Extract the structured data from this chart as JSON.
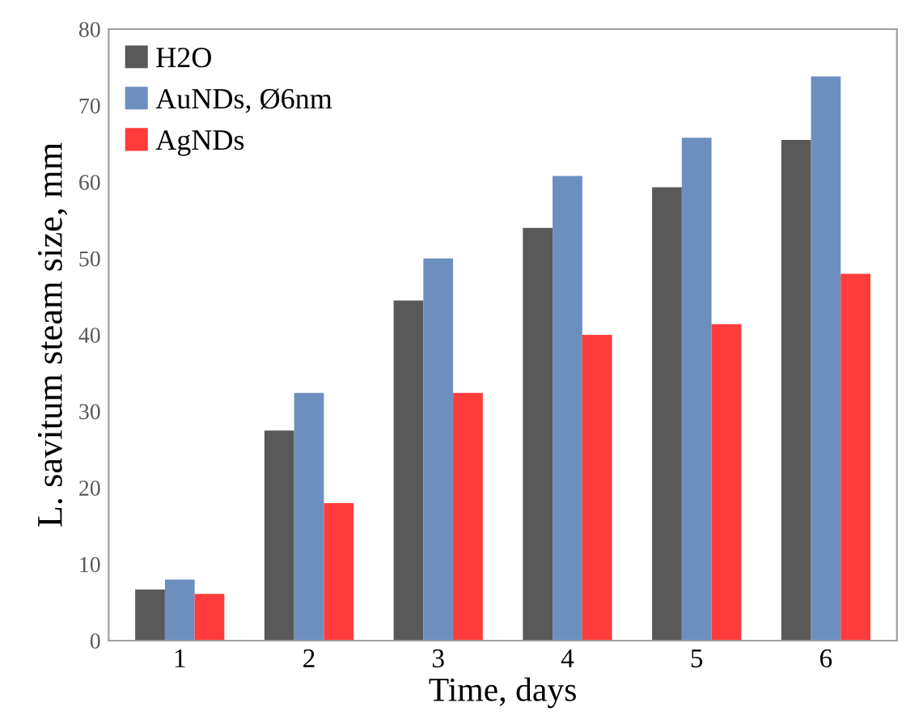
{
  "chart_data": {
    "type": "bar",
    "xlabel": "Time, days",
    "ylabel": "L. savitum steam size, mm",
    "categories": [
      "1",
      "2",
      "3",
      "4",
      "5",
      "6"
    ],
    "series": [
      {
        "name": "H2O",
        "color": "#595959",
        "values": [
          6.7,
          27.5,
          44.5,
          54,
          59.3,
          65.5
        ]
      },
      {
        "name": "AuNDs, Ø6nm",
        "color": "#6d8fbf",
        "values": [
          8,
          32.4,
          50,
          60.8,
          65.8,
          73.8
        ]
      },
      {
        "name": "AgNDs",
        "color": "#ff3b3b",
        "values": [
          6.1,
          18,
          32.4,
          40,
          41.4,
          48
        ]
      }
    ],
    "ylim": [
      0,
      80
    ],
    "yticks": [
      0,
      10,
      20,
      30,
      40,
      50,
      60,
      70,
      80
    ],
    "grid": false,
    "legend": "top left"
  }
}
